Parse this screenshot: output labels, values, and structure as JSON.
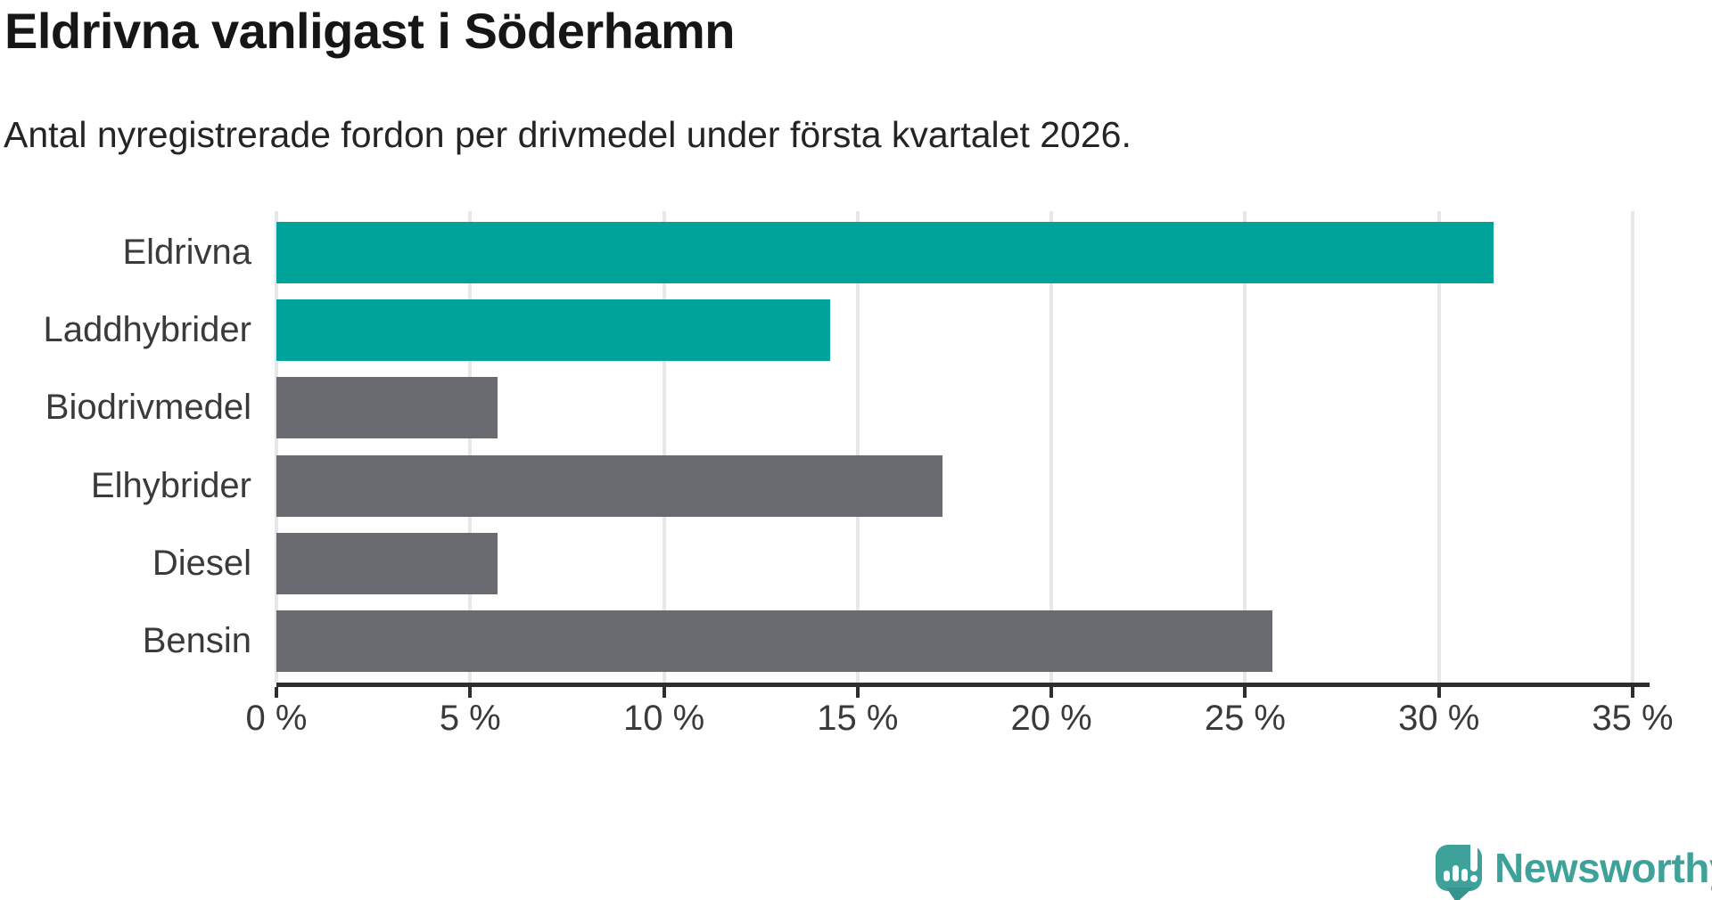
{
  "title": "Eldrivna vanligast i Söderhamn",
  "subtitle": "Antal nyregistrerade fordon per drivmedel under första kvartalet 2026.",
  "colors": {
    "highlight": "#00A39A",
    "neutral": "#6A6B70",
    "axis": "#2E2E2E",
    "gridline": "#E7E7E7",
    "title_text": "#161616",
    "body_text": "#3A3A3A",
    "brand": "#3EA29B",
    "brand_dark": "#35948E",
    "logo_glyph": "#FFFFFF"
  },
  "branding": {
    "logo_text": "Newsworthy",
    "logo_icon": "speech-bubble-barchart-exclamation-icon"
  },
  "chart_data": {
    "type": "bar",
    "orientation": "horizontal",
    "title": "Eldrivna vanligast i Söderhamn",
    "subtitle": "Antal nyregistrerade fordon per drivmedel under första kvartalet 2026.",
    "categories": [
      "Eldrivna",
      "Laddhybrider",
      "Biodrivmedel",
      "Elhybrider",
      "Diesel",
      "Bensin"
    ],
    "values": [
      31.4,
      14.3,
      5.7,
      17.2,
      5.7,
      25.7
    ],
    "unit": "%",
    "bar_colors": [
      "#00A39A",
      "#00A39A",
      "#6A6B70",
      "#6A6B70",
      "#6A6B70",
      "#6A6B70"
    ],
    "highlighted_categories": [
      "Eldrivna",
      "Laddhybrider"
    ],
    "xlabel": "",
    "ylabel": "",
    "xlim": [
      0,
      35
    ],
    "x_ticks": [
      0,
      5,
      10,
      15,
      20,
      25,
      30,
      35
    ],
    "x_tick_labels": [
      "0 %",
      "5 %",
      "10 %",
      "15 %",
      "20 %",
      "25 %",
      "30 %",
      "35 %"
    ],
    "grid": "vertical-only",
    "legend": "none"
  }
}
